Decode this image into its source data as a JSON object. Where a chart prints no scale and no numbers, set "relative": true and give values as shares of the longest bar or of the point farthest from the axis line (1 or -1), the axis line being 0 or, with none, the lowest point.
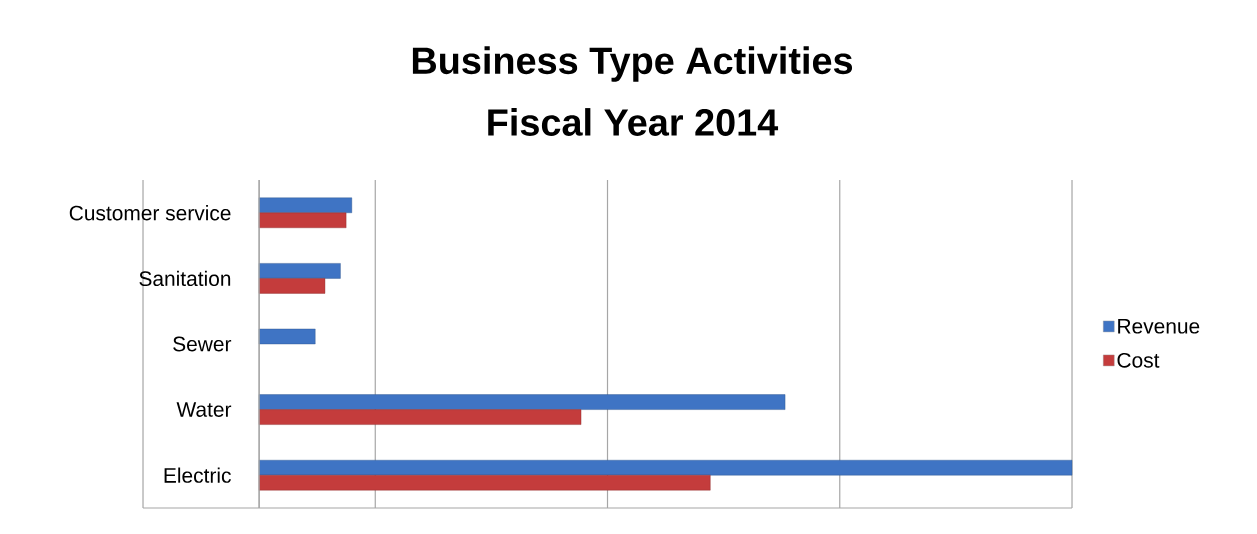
{
  "chart_data": {
    "type": "bar",
    "orientation": "horizontal",
    "relative": true,
    "title": "Business Type Activities",
    "subtitle": "Fiscal Year 2014",
    "categories": [
      "Customer service",
      "Sanitation",
      "Sewer",
      "Water",
      "Electric"
    ],
    "series": [
      {
        "name": "Revenue",
        "color": "#3f74c4",
        "values": [
          0.114,
          0.1,
          0.069,
          0.647,
          1
        ]
      },
      {
        "name": "Cost",
        "color": "#c43c3c",
        "values": [
          0.107,
          0.081,
          null,
          0.396,
          0.555
        ]
      }
    ],
    "grid": "x",
    "legend": "right"
  }
}
